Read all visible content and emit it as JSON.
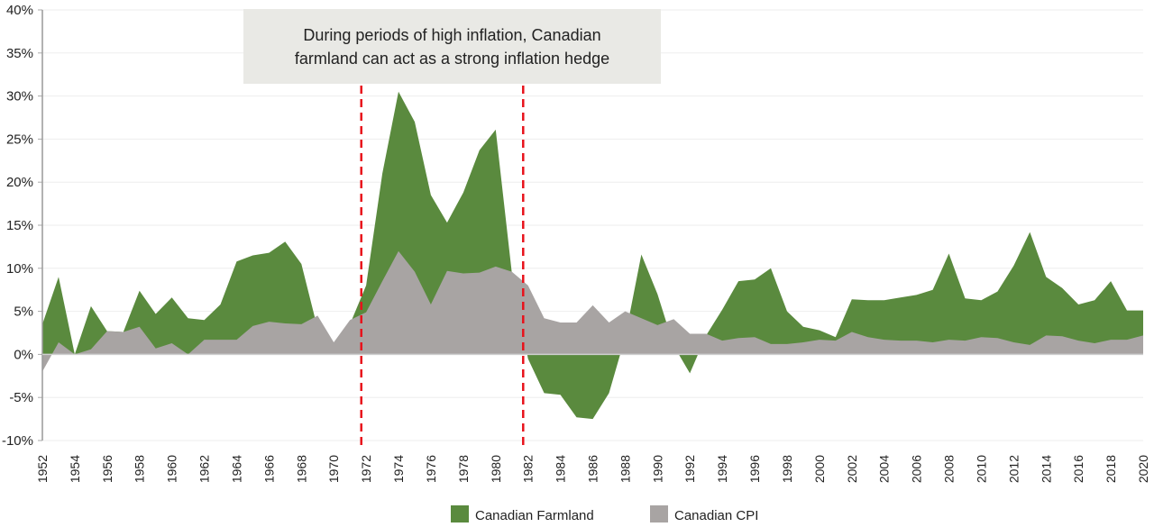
{
  "chart_data": {
    "type": "area",
    "title": "",
    "xlabel": "",
    "ylabel": "",
    "ylim": [
      -10,
      40
    ],
    "yticks": [
      "-10%",
      "-5%",
      "0%",
      "5%",
      "10%",
      "15%",
      "20%",
      "25%",
      "30%",
      "35%",
      "40%"
    ],
    "ytick_values": [
      -10,
      -5,
      0,
      5,
      10,
      15,
      20,
      25,
      30,
      35,
      40
    ],
    "grid": true,
    "legend_position": "bottom",
    "x": [
      1952,
      1953,
      1954,
      1955,
      1956,
      1957,
      1958,
      1959,
      1960,
      1961,
      1962,
      1963,
      1964,
      1965,
      1966,
      1967,
      1968,
      1969,
      1970,
      1971,
      1972,
      1973,
      1974,
      1975,
      1976,
      1977,
      1978,
      1979,
      1980,
      1981,
      1982,
      1983,
      1984,
      1985,
      1986,
      1987,
      1988,
      1989,
      1990,
      1991,
      1992,
      1993,
      1994,
      1995,
      1996,
      1997,
      1998,
      1999,
      2000,
      2001,
      2002,
      2003,
      2004,
      2005,
      2006,
      2007,
      2008,
      2009,
      2010,
      2011,
      2012,
      2013,
      2014,
      2015,
      2016,
      2017,
      2018,
      2019,
      2020
    ],
    "xtick_labels": [
      "1952",
      "1954",
      "1956",
      "1958",
      "1960",
      "1962",
      "1964",
      "1966",
      "1968",
      "1970",
      "1972",
      "1974",
      "1976",
      "1978",
      "1980",
      "1982",
      "1984",
      "1986",
      "1988",
      "1990",
      "1992",
      "1994",
      "1996",
      "1998",
      "2000",
      "2002",
      "2004",
      "2006",
      "2008",
      "2010",
      "2012",
      "2014",
      "2016",
      "2018",
      "2020"
    ],
    "series": [
      {
        "name": "Canadian Farmland",
        "color": "#5a8a3e",
        "values": [
          3.5,
          9,
          0,
          5.6,
          2.7,
          2.6,
          7.4,
          4.7,
          6.6,
          4.2,
          4.0,
          5.8,
          10.8,
          11.5,
          11.8,
          13.1,
          10.5,
          3.0,
          1.0,
          3.5,
          8,
          21,
          30.5,
          27,
          18.5,
          15.3,
          18.8,
          23.7,
          26.1,
          9.5,
          -0.5,
          -4.5,
          -4.7,
          -7.3,
          -7.5,
          -4.5,
          2,
          11.6,
          7,
          1,
          -2.2,
          2.2,
          5.2,
          8.5,
          8.7,
          10,
          5,
          3.2,
          2.8,
          2.0,
          6.4,
          6.3,
          6.3,
          6.6,
          6.9,
          7.5,
          11.7,
          6.5,
          6.3,
          7.3,
          10.3,
          14.2,
          9,
          7.7,
          5.8,
          6.3,
          8.5,
          5.1,
          5.1
        ]
      },
      {
        "name": "Canadian CPI",
        "color": "#a8a4a3",
        "values": [
          -2,
          1.4,
          0,
          0.6,
          2.7,
          2.6,
          3.2,
          0.7,
          1.3,
          0,
          1.7,
          1.7,
          1.7,
          3.3,
          3.8,
          3.6,
          3.5,
          4.5,
          1.4,
          4.0,
          4.9,
          8.5,
          12,
          9.6,
          5.8,
          9.7,
          9.4,
          9.5,
          10.2,
          9.6,
          8,
          4.2,
          3.7,
          3.7,
          5.7,
          3.7,
          5,
          4.2,
          3.4,
          4.1,
          2.4,
          2.4,
          1.6,
          1.9,
          2,
          1.2,
          1.2,
          1.4,
          1.7,
          1.6,
          2.6,
          2,
          1.7,
          1.6,
          1.6,
          1.4,
          1.7,
          1.6,
          2,
          1.9,
          1.4,
          1.1,
          2.2,
          2.1,
          1.6,
          1.3,
          1.7,
          1.7,
          2.2
        ]
      }
    ],
    "reference_lines": {
      "years": [
        1971.7,
        1981.7
      ],
      "color": "#e8121b",
      "style": "dashed"
    },
    "annotation": "During periods of high inflation, Canadian farmland can act as a strong inflation hedge"
  }
}
